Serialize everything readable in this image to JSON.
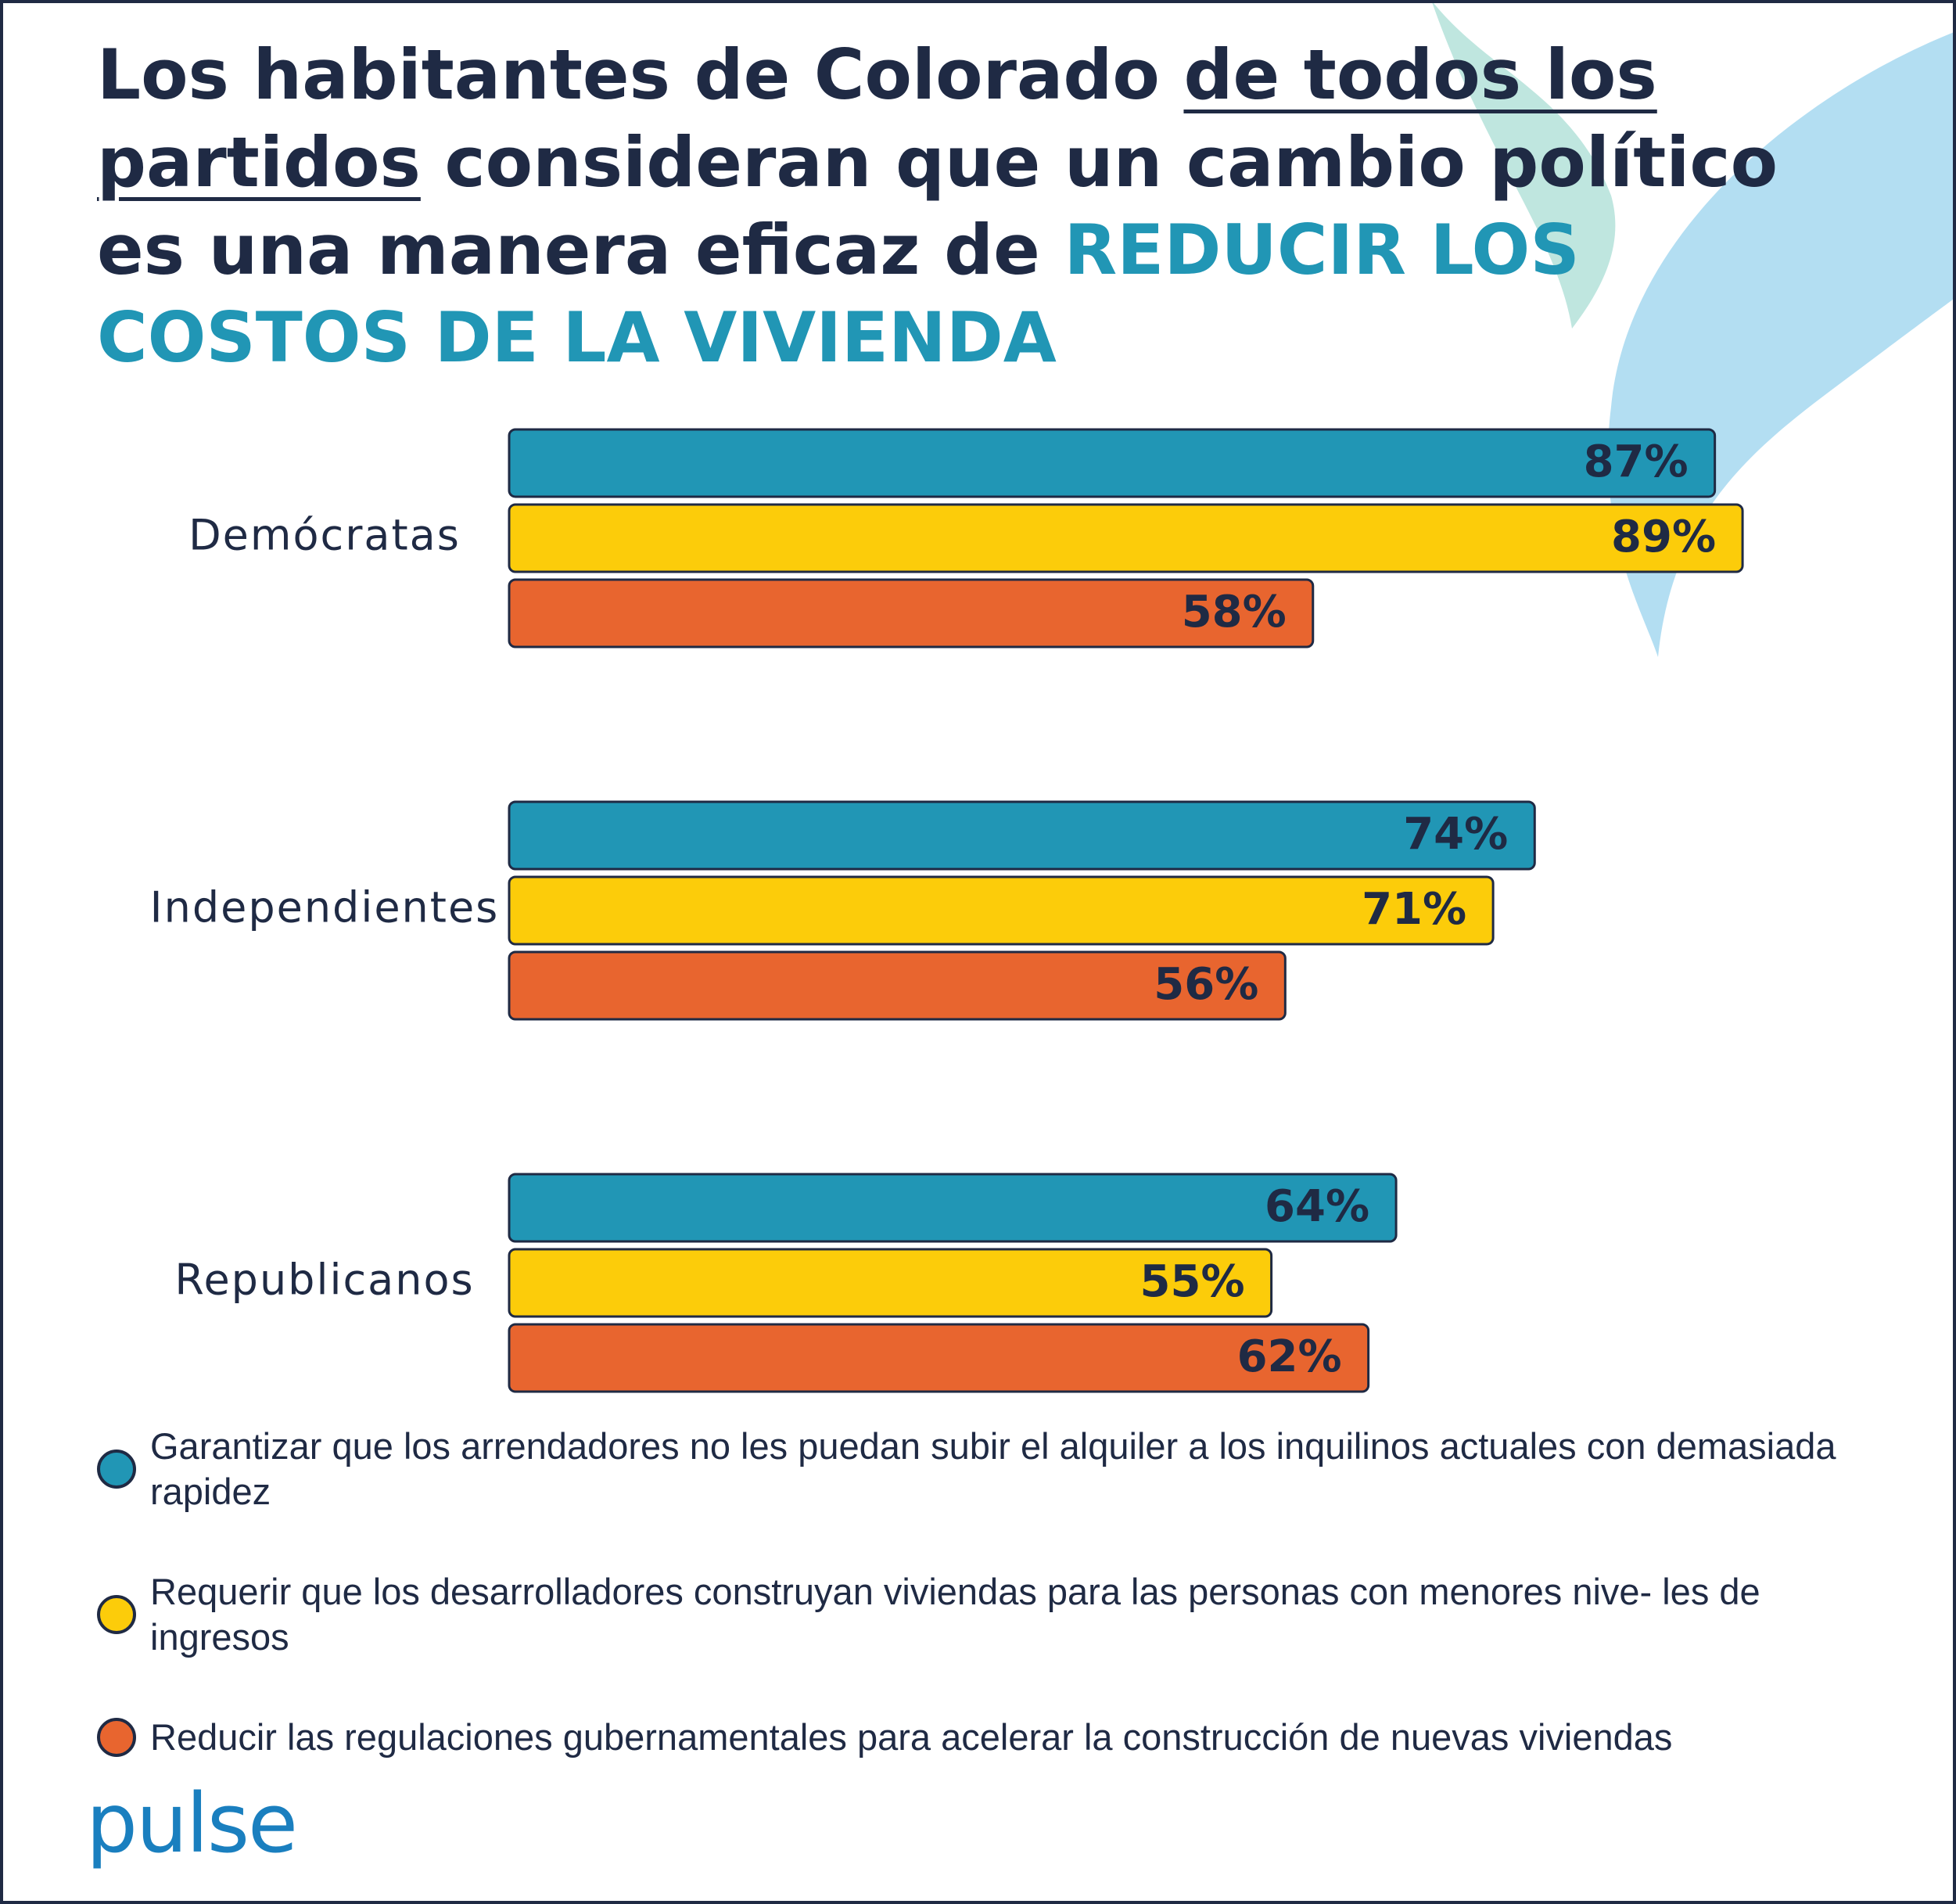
{
  "chart_data": {
    "type": "bar",
    "orientation": "horizontal",
    "title": [
      "Los habitantes de Colorado",
      "de todos los partidos",
      "consideran que un cambio político es una manera eficaz de",
      "REDUCIR LOS COSTOS DE LA VIVIENDA"
    ],
    "categories": [
      "Demócratas",
      "Independientes",
      "Republicanos"
    ],
    "series": [
      {
        "name": "Garantizar que los arrendadores no les puedan subir el alquiler a los inquilinos actuales con demasiada rapidez",
        "color": "#2196b5",
        "values": [
          87,
          74,
          64
        ],
        "value_labels": [
          "87%",
          "74%",
          "64%"
        ]
      },
      {
        "name": "Requerir que los desarrolladores construyan viviendas para las personas con menores nive- les de ingresos",
        "color": "#fccc0a",
        "values": [
          89,
          71,
          55
        ],
        "value_labels": [
          "89%",
          "71%",
          "55%"
        ]
      },
      {
        "name": "Reducir las regulaciones gubernamentales para acelerar la construcción de nuevas viviendas",
        "color": "#e8652f",
        "values": [
          58,
          56,
          62
        ],
        "value_labels": [
          "58%",
          "56%",
          "62%"
        ]
      }
    ],
    "xlim": [
      0,
      100
    ],
    "legend": "bottom-left"
  },
  "logo": "pulse"
}
